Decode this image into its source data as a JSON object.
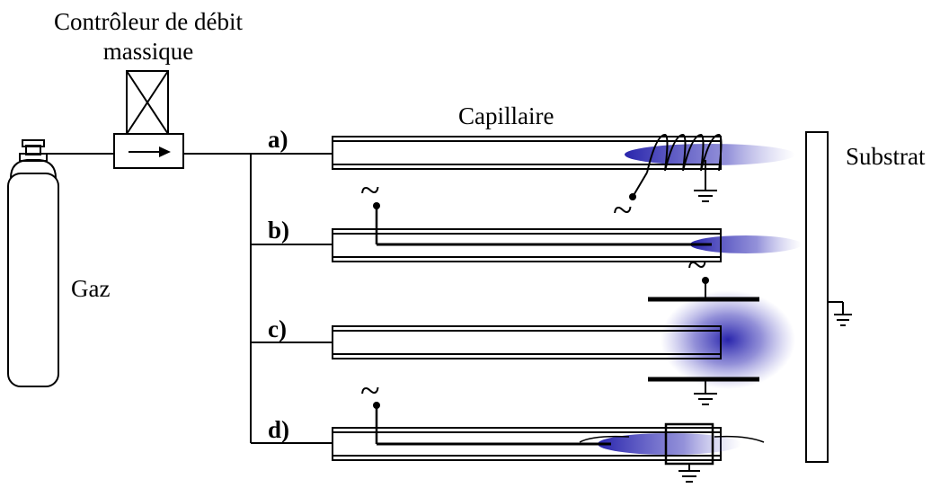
{
  "labels": {
    "controller_line1": "Contrôleur de débit",
    "controller_line2": "massique",
    "capillary": "Capillaire",
    "substrate": "Substrat",
    "gas": "Gaz"
  },
  "configs": [
    {
      "tag": "a)"
    },
    {
      "tag": "b)"
    },
    {
      "tag": "c)"
    },
    {
      "tag": "d)"
    }
  ],
  "ac_symbol": "~",
  "colors": {
    "plasma": "#1e1aa8",
    "line": "#000000"
  }
}
